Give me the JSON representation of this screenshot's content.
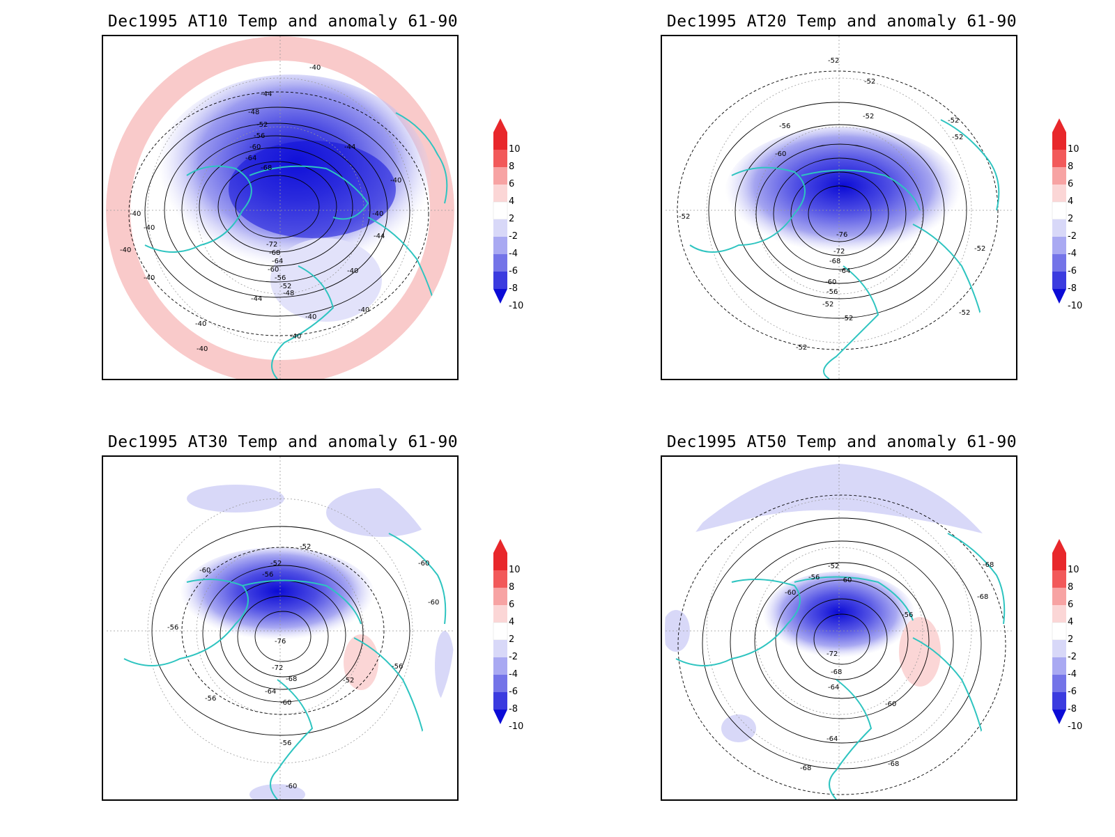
{
  "panels": [
    {
      "title": "Dec1995 AT10 Temp and anomaly 61-90",
      "contour_labels": [
        "-40",
        "-40",
        "-44",
        "-48",
        "-52",
        "-56",
        "-60",
        "-64",
        "-68",
        "-44",
        "-40",
        "-40",
        "-40",
        "-40",
        "-40",
        "-44",
        "-72",
        "-68",
        "-64",
        "-60",
        "-56",
        "-52",
        "-48",
        "-44",
        "-40",
        "-40",
        "-40",
        "-40",
        "-40",
        "-40",
        "-40"
      ]
    },
    {
      "title": "Dec1995 AT20 Temp and anomaly 61-90",
      "contour_labels": [
        "-52",
        "-52",
        "-56",
        "-60",
        "-52",
        "-52",
        "-52",
        "-52",
        "-52",
        "-76",
        "-72",
        "-68",
        "-64",
        "-60",
        "-56",
        "-52",
        "-52",
        "-52",
        "-52"
      ]
    },
    {
      "title": "Dec1995 AT30 Temp and anomaly 61-90",
      "contour_labels": [
        "-52",
        "-60",
        "-56",
        "-52",
        "-60",
        "-60",
        "-56",
        "-76",
        "-72",
        "-68",
        "-64",
        "-60",
        "-52",
        "-56",
        "-56",
        "-56",
        "-60"
      ]
    },
    {
      "title": "Dec1995 AT50 Temp and anomaly 61-90",
      "contour_labels": [
        "-52",
        "-56",
        "-60",
        "-60",
        "-56",
        "-72",
        "-68",
        "-64",
        "-60",
        "-64",
        "-68",
        "-68",
        "-68",
        "-68"
      ]
    }
  ],
  "colorbar": {
    "labels": [
      "10",
      "8",
      "6",
      "4",
      "2",
      "-2",
      "-4",
      "-6",
      "-8",
      "-10"
    ],
    "colors": [
      "#e8272b",
      "#f2595a",
      "#f7a3a3",
      "#fbd6d6",
      "#ffffff",
      "#d8d8f8",
      "#a9a9f2",
      "#7474e8",
      "#3b3bdf",
      "#0b0bd6"
    ]
  },
  "colors": {
    "coastline": "#2ec4c0",
    "contour": "#000000",
    "anomaly_negative": "#3b3bdf",
    "anomaly_positive": "#f7b3b3"
  }
}
